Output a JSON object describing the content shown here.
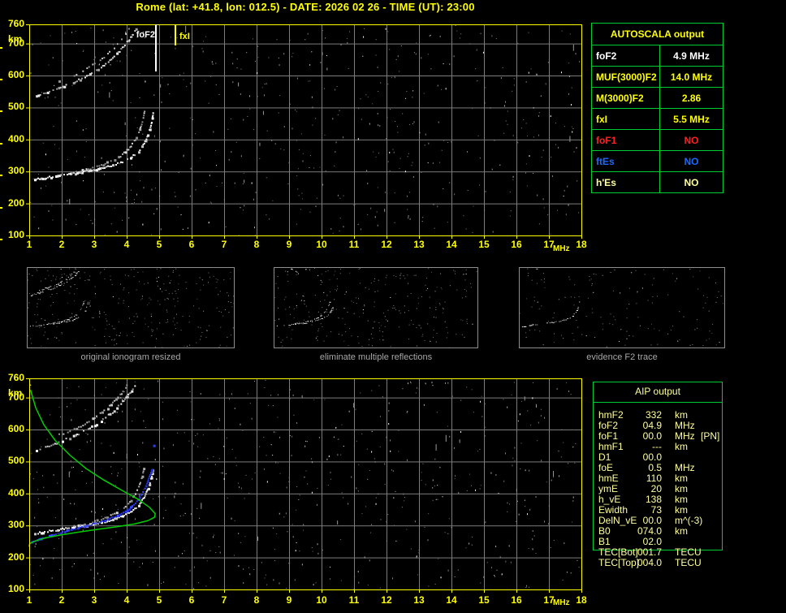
{
  "header": {
    "title": "Rome (lat: +41.8, lon: 012.5) - DATE: 2026 02 26 - TIME (UT): 23:00"
  },
  "colors": {
    "accent_yellow": "#ffff00",
    "grid": "#7c7c7c",
    "trace_white": "#ffffff",
    "profile_green": "#00cc00",
    "restored_blue": "#2838f0",
    "table_border_green": "#00cc33",
    "foF1_red": "#ff2020",
    "ftEs_blue": "#1a6aff",
    "pale_yellow": "#ffff9c",
    "caption_gray": "#a8a8a8",
    "noise_grays": [
      "#8a8a8a",
      "#707070",
      "#b0b0b0",
      "#ffffff"
    ],
    "thumb_noise": [
      "#777777",
      "#999999",
      "#555555",
      "#eeeeee"
    ]
  },
  "axis": {
    "x_unit": "MHz",
    "y_unit": "km"
  },
  "autoscala_table": {
    "title": "AUTOSCALA output",
    "rows": [
      {
        "label": "foF2",
        "value": "4.9 MHz",
        "color": "#ffffff"
      },
      {
        "label": "MUF(3000)F2",
        "value": "14.0 MHz",
        "color": "#ffff00"
      },
      {
        "label": "M(3000)F2",
        "value": "2.86",
        "color": "#ffff00"
      },
      {
        "label": "fxI",
        "value": "5.5 MHz",
        "color": "#ffff00"
      },
      {
        "label": "foF1",
        "value": "NO",
        "color": "#ff2020"
      },
      {
        "label": "ftEs",
        "value": "NO",
        "color": "#1a6aff"
      },
      {
        "label": "h'Es",
        "value": "NO",
        "color": "#ffff9c"
      }
    ]
  },
  "thumbnails": [
    {
      "caption": "original ionogram resized"
    },
    {
      "caption": "eliminate multiple reflections"
    },
    {
      "caption": "evidence F2 trace"
    }
  ],
  "aip_table": {
    "title": "AIP output",
    "rows": [
      {
        "name": "hmF2",
        "value": "332",
        "unit": "km",
        "extra": ""
      },
      {
        "name": "foF2",
        "value": "04.9",
        "unit": "MHz",
        "extra": ""
      },
      {
        "name": "foF1",
        "value": "00.0",
        "unit": "MHz",
        "extra": "[PN]"
      },
      {
        "name": "hmF1",
        "value": "---",
        "unit": "km",
        "extra": ""
      },
      {
        "name": "D1",
        "value": "00.0",
        "unit": "",
        "extra": ""
      },
      {
        "name": "foE",
        "value": "0.5",
        "unit": "MHz",
        "extra": ""
      },
      {
        "name": "hmE",
        "value": "110",
        "unit": "km",
        "extra": ""
      },
      {
        "name": "ymE",
        "value": "20",
        "unit": "km",
        "extra": ""
      },
      {
        "name": "h_vE",
        "value": "138",
        "unit": "km",
        "extra": ""
      },
      {
        "name": "Ewidth",
        "value": "73",
        "unit": "km",
        "extra": ""
      },
      {
        "name": "DelN_vE",
        "value": "00.0",
        "unit": "m^(-3)",
        "extra": ""
      },
      {
        "name": "B0",
        "value": "074.0",
        "unit": "km",
        "extra": ""
      },
      {
        "name": "B1",
        "value": "02.0",
        "unit": "",
        "extra": ""
      },
      {
        "name": "TEC[Bot]",
        "value": "001.7",
        "unit": "TECU",
        "extra": ""
      },
      {
        "name": "TEC[Top]",
        "value": "004.0",
        "unit": "TECU",
        "extra": ""
      }
    ]
  },
  "chart_data": {
    "shared": {
      "type": "scatter",
      "xlabel": "MHz",
      "ylabel": "km",
      "xlim": [
        1,
        18
      ],
      "ylim": [
        100,
        760
      ],
      "xticks": [
        1,
        2,
        3,
        4,
        5,
        6,
        7,
        8,
        9,
        10,
        11,
        12,
        13,
        14,
        15,
        16,
        17,
        18
      ],
      "yticks": [
        760,
        700,
        600,
        500,
        400,
        300,
        200,
        100
      ],
      "grid": true,
      "traces": {
        "hop1_a": [
          [
            1.15,
            277
          ],
          [
            1.5,
            283
          ],
          [
            2.0,
            291
          ],
          [
            2.5,
            299
          ],
          [
            3.0,
            308
          ],
          [
            3.4,
            317
          ],
          [
            3.8,
            330
          ],
          [
            4.1,
            345
          ],
          [
            4.35,
            365
          ],
          [
            4.52,
            390
          ],
          [
            4.65,
            420
          ],
          [
            4.74,
            452
          ],
          [
            4.8,
            488
          ]
        ],
        "hop1_b": [
          [
            2.3,
            299
          ],
          [
            2.8,
            310
          ],
          [
            3.2,
            322
          ],
          [
            3.55,
            337
          ],
          [
            3.85,
            355
          ],
          [
            4.08,
            377
          ],
          [
            4.25,
            403
          ],
          [
            4.38,
            432
          ],
          [
            4.48,
            465
          ],
          [
            4.54,
            497
          ]
        ],
        "hop2_a": [
          [
            1.2,
            538
          ],
          [
            1.6,
            552
          ],
          [
            2.0,
            567
          ],
          [
            2.4,
            584
          ],
          [
            2.8,
            604
          ],
          [
            3.2,
            629
          ],
          [
            3.55,
            657
          ],
          [
            3.85,
            688
          ],
          [
            4.1,
            720
          ],
          [
            4.3,
            752
          ]
        ],
        "hop2_b": [
          [
            1.9,
            585
          ],
          [
            2.3,
            600
          ],
          [
            2.7,
            620
          ],
          [
            3.05,
            643
          ],
          [
            3.4,
            670
          ],
          [
            3.7,
            700
          ],
          [
            3.95,
            732
          ],
          [
            4.08,
            757
          ]
        ],
        "blue_trace": [
          [
            1.05,
            251
          ],
          [
            1.4,
            263
          ],
          [
            1.8,
            276
          ],
          [
            2.2,
            288
          ],
          [
            2.6,
            298
          ],
          [
            3.0,
            308
          ],
          [
            3.35,
            319
          ],
          [
            3.7,
            333
          ],
          [
            4.0,
            350
          ],
          [
            4.25,
            372
          ],
          [
            4.45,
            400
          ],
          [
            4.6,
            432
          ],
          [
            4.7,
            462
          ],
          [
            4.77,
            483
          ]
        ],
        "blue_dot": [
          [
            4.84,
            550
          ]
        ],
        "green_profile": [
          [
            1.04,
            724
          ],
          [
            1.2,
            668
          ],
          [
            1.45,
            615
          ],
          [
            1.8,
            566
          ],
          [
            2.25,
            520
          ],
          [
            2.75,
            478
          ],
          [
            3.3,
            442
          ],
          [
            3.85,
            410
          ],
          [
            4.35,
            382
          ],
          [
            4.7,
            357
          ],
          [
            4.88,
            337
          ],
          [
            4.86,
            326
          ],
          [
            4.65,
            315
          ],
          [
            4.25,
            305
          ],
          [
            3.7,
            296
          ],
          [
            3.1,
            288
          ],
          [
            2.5,
            279
          ],
          [
            1.95,
            270
          ],
          [
            1.5,
            261
          ],
          [
            1.2,
            252
          ],
          [
            1.02,
            244
          ],
          [
            0.99,
            234
          ]
        ],
        "remnant_a": [
          [
            2.05,
            758
          ],
          [
            2.22,
            740
          ]
        ],
        "remnant_b": [
          [
            2.35,
            733
          ],
          [
            2.58,
            708
          ]
        ]
      },
      "trace_styles": {
        "hop1_a": {
          "mode": "dots",
          "step": 2.0,
          "size": 2,
          "skip": 0.12,
          "jitter": 1.0,
          "colors": [
            "#ffffff",
            "#ececec",
            "#c8c8c8"
          ]
        },
        "hop1_b": {
          "mode": "dots",
          "step": 2.4,
          "size": 2,
          "skip": 0.3,
          "jitter": 1.1,
          "colors": [
            "#dcdcdc",
            "#a8a8a8",
            "#8c8c8c"
          ]
        },
        "hop2_a": {
          "mode": "dots",
          "step": 2.2,
          "size": 2,
          "skip": 0.25,
          "jitter": 1.2,
          "colors": [
            "#f2f2f2",
            "#cfcfcf",
            "#9e9e9e"
          ]
        },
        "hop2_b": {
          "mode": "dots",
          "step": 2.6,
          "size": 2,
          "skip": 0.38,
          "jitter": 1.2,
          "colors": [
            "#c4c4c4",
            "#949494"
          ]
        },
        "blue_trace": {
          "mode": "dots",
          "step": 2.4,
          "size": 2,
          "skip": 0.06,
          "jitter": 0.7,
          "colors": [
            "#2838f0",
            "#3a4aff",
            "#1f2cd0"
          ]
        },
        "blue_dot": {
          "mode": "point",
          "color": "#2f3ef5",
          "size": 3
        },
        "green_profile": {
          "mode": "line",
          "color": "#00cc00",
          "width": 1.5
        },
        "remnant_a": {
          "mode": "dots",
          "step": 2.0,
          "size": 2,
          "skip": 0.15,
          "jitter": 0.6,
          "colors": [
            "#ffffff",
            "#d0d0d0"
          ]
        },
        "remnant_b": {
          "mode": "dots",
          "step": 2.0,
          "size": 2,
          "skip": 0.15,
          "jitter": 0.6,
          "colors": [
            "#ffffff",
            "#d0d0d0"
          ]
        }
      }
    },
    "top_ionogram": {
      "markers": [
        {
          "label": "foF2",
          "freq": 4.9,
          "color": "#ffffff",
          "line_len": 58,
          "label_side": "left"
        },
        {
          "label": "fxI",
          "freq": 5.5,
          "color": "#ffff00",
          "line_len": 26,
          "label_side": "right"
        }
      ],
      "traces": [
        "hop1_a",
        "hop1_b",
        "hop2_a",
        "hop2_b"
      ],
      "noise_seed": 42,
      "noise_dots": 560,
      "noise_streaks": 14
    },
    "bottom_ionogram": {
      "markers": [],
      "traces": [
        "hop1_a",
        "hop1_b",
        "hop2_a",
        "hop2_b",
        "blue_trace",
        "blue_dot",
        "green_profile"
      ],
      "noise_seed": 77,
      "noise_dots": 600,
      "noise_streaks": 16
    },
    "thumbnails": [
      {
        "traces": [
          "hop1_a",
          "hop1_b",
          "hop2_a",
          "hop2_b"
        ],
        "noise_seed": 11,
        "noise_dots": 300
      },
      {
        "traces": [
          "hop1_a",
          "hop1_b",
          "remnant_a",
          "remnant_b"
        ],
        "noise_seed": 12,
        "noise_dots": 260
      },
      {
        "traces": [
          "hop1_a",
          "remnant_a",
          "remnant_b"
        ],
        "noise_seed": 13,
        "noise_dots": 150
      }
    ],
    "scaled_values": {
      "foF2_MHz": 4.9,
      "MUF3000F2_MHz": 14.0,
      "M3000F2": 2.86,
      "fxI_MHz": 5.5,
      "hmF2_km": 332
    }
  }
}
